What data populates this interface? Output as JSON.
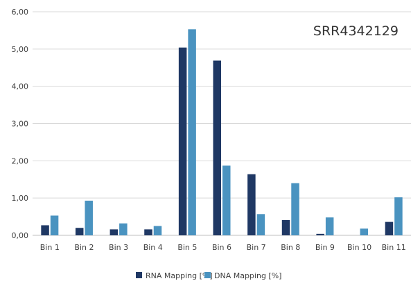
{
  "chart_data": {
    "type": "bar",
    "title": "SRR4342129",
    "xlabel": "",
    "ylabel": "",
    "categories": [
      "Bin 1",
      "Bin 2",
      "Bin 3",
      "Bin 4",
      "Bin 5",
      "Bin 6",
      "Bin 7",
      "Bin 8",
      "Bin 9",
      "Bin 10",
      "Bin 11"
    ],
    "series": [
      {
        "name": "RNA Mapping [%]",
        "color": "#1f3864",
        "values": [
          0.27,
          0.2,
          0.16,
          0.16,
          5.04,
          4.69,
          1.64,
          0.41,
          0.04,
          0.0,
          0.36
        ]
      },
      {
        "name": "DNA Mapping [%]",
        "color": "#4a93c0",
        "values": [
          0.53,
          0.93,
          0.32,
          0.25,
          5.53,
          1.87,
          0.57,
          1.4,
          0.48,
          0.18,
          1.02
        ]
      }
    ],
    "ylim": [
      0,
      6
    ],
    "yticks": [
      "0,00",
      "1,00",
      "2,00",
      "3,00",
      "4,00",
      "5,00",
      "6,00"
    ],
    "grid": true,
    "legend_position": "bottom"
  }
}
